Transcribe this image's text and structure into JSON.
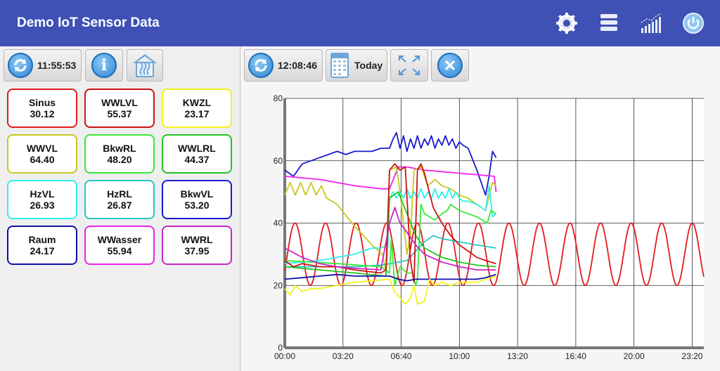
{
  "app": {
    "title": "Demo IoT Sensor Data"
  },
  "actions": [
    "gear-icon",
    "layers-icon",
    "bar-chart-icon",
    "power-icon"
  ],
  "left_toolbar": {
    "time": "11:55:53"
  },
  "right_toolbar": {
    "time": "12:08:46",
    "date_label": "Today"
  },
  "sensors": [
    {
      "name": "Sinus",
      "value": "30.12",
      "color": "#e21b1b"
    },
    {
      "name": "WWLVL",
      "value": "55.37",
      "color": "#c81414"
    },
    {
      "name": "KWZL",
      "value": "23.17",
      "color": "#f2f21c"
    },
    {
      "name": "WWVL",
      "value": "64.40",
      "color": "#c8c81e"
    },
    {
      "name": "BkwRL",
      "value": "48.20",
      "color": "#3ae83a"
    },
    {
      "name": "WWLRL",
      "value": "44.37",
      "color": "#22c422"
    },
    {
      "name": "HzVL",
      "value": "26.93",
      "color": "#2ef0ec"
    },
    {
      "name": "HzRL",
      "value": "26.87",
      "color": "#24c8c0"
    },
    {
      "name": "BkwVL",
      "value": "53.20",
      "color": "#1a1ad0"
    },
    {
      "name": "Raum",
      "value": "24.17",
      "color": "#1010a8"
    },
    {
      "name": "WWasser",
      "value": "55.94",
      "color": "#ee22ee"
    },
    {
      "name": "WWRL",
      "value": "37.95",
      "color": "#c826c8"
    }
  ],
  "chart_data": {
    "type": "line",
    "ylim": [
      0,
      80
    ],
    "yticks": [
      "0",
      "20",
      "40",
      "60",
      "80"
    ],
    "xlim": [
      0,
      24
    ],
    "xticks": [
      {
        "label": "00:00",
        "h": 0
      },
      {
        "label": "03:20",
        "h": 3.333
      },
      {
        "label": "06:40",
        "h": 6.667
      },
      {
        "label": "10:00",
        "h": 10
      },
      {
        "label": "13:20",
        "h": 13.333
      },
      {
        "label": "16:40",
        "h": 16.667
      },
      {
        "label": "20:00",
        "h": 20
      },
      {
        "label": "23:20",
        "h": 23.333
      }
    ],
    "grid": true,
    "series": [
      {
        "color": "#e21b1b",
        "sine": {
          "mean": 30,
          "amp": 10,
          "period_h": 1.75,
          "phase_h": 0.15,
          "x0": 0,
          "x1": 24
        }
      },
      {
        "color": "#1a1ad0",
        "points": [
          [
            0,
            57
          ],
          [
            0.5,
            55
          ],
          [
            1,
            59
          ],
          [
            1.5,
            60
          ],
          [
            2,
            61
          ],
          [
            2.5,
            62
          ],
          [
            3,
            63
          ],
          [
            3.5,
            62
          ],
          [
            4,
            63
          ],
          [
            4.5,
            63
          ],
          [
            5,
            63
          ],
          [
            5.5,
            64
          ],
          [
            6,
            64
          ],
          [
            6.2,
            67
          ],
          [
            6.4,
            69
          ],
          [
            6.6,
            64
          ],
          [
            6.8,
            68
          ],
          [
            7,
            63
          ],
          [
            7.2,
            67
          ],
          [
            7.4,
            64
          ],
          [
            7.6,
            68
          ],
          [
            7.8,
            64
          ],
          [
            8,
            67
          ],
          [
            8.2,
            65
          ],
          [
            8.4,
            68
          ],
          [
            8.6,
            64
          ],
          [
            8.8,
            67
          ],
          [
            9,
            65
          ],
          [
            9.2,
            68
          ],
          [
            9.4,
            65
          ],
          [
            9.6,
            67
          ],
          [
            9.8,
            64
          ],
          [
            10,
            66
          ],
          [
            10.2,
            65
          ],
          [
            10.5,
            64
          ],
          [
            11,
            57
          ],
          [
            11.5,
            49
          ],
          [
            11.7,
            55
          ],
          [
            11.9,
            63
          ],
          [
            12.1,
            61
          ]
        ]
      },
      {
        "color": "#ee22ee",
        "points": [
          [
            0,
            55
          ],
          [
            2,
            54
          ],
          [
            4,
            52
          ],
          [
            5.5,
            51
          ],
          [
            6,
            51
          ],
          [
            6.5,
            58
          ],
          [
            7,
            58
          ],
          [
            8,
            57
          ],
          [
            10,
            56
          ],
          [
            12,
            55
          ],
          [
            12.1,
            50
          ]
        ]
      },
      {
        "color": "#c8c81e",
        "points": [
          [
            0,
            49
          ],
          [
            0.3,
            53
          ],
          [
            0.6,
            49
          ],
          [
            0.9,
            53
          ],
          [
            1.2,
            49
          ],
          [
            1.5,
            53
          ],
          [
            1.8,
            49
          ],
          [
            2.1,
            52
          ],
          [
            2.4,
            48
          ],
          [
            3,
            46
          ],
          [
            4,
            39
          ],
          [
            5,
            33
          ],
          [
            5.6,
            30
          ],
          [
            5.8,
            24
          ],
          [
            6,
            57
          ],
          [
            6.4,
            58
          ],
          [
            6.6,
            50
          ],
          [
            6.8,
            40
          ],
          [
            7,
            30
          ],
          [
            7.2,
            36
          ],
          [
            7.4,
            57
          ],
          [
            7.8,
            58
          ],
          [
            8.2,
            52
          ],
          [
            8.6,
            54
          ],
          [
            9,
            52
          ],
          [
            9.5,
            51
          ],
          [
            10,
            49
          ],
          [
            10.5,
            48
          ],
          [
            11,
            46
          ],
          [
            11.5,
            44
          ],
          [
            11.9,
            53
          ],
          [
            12.1,
            52
          ]
        ]
      },
      {
        "color": "#2ef0ec",
        "points": [
          [
            0,
            27
          ],
          [
            1,
            27.5
          ],
          [
            2,
            28
          ],
          [
            3,
            29
          ],
          [
            4,
            30
          ],
          [
            4.5,
            31
          ],
          [
            5,
            32
          ],
          [
            5.5,
            32
          ],
          [
            5.9,
            33
          ],
          [
            6,
            48
          ],
          [
            6.2,
            50
          ],
          [
            6.4,
            48
          ],
          [
            6.6,
            50
          ],
          [
            6.8,
            48
          ],
          [
            7,
            51
          ],
          [
            7.2,
            48
          ],
          [
            7.4,
            50
          ],
          [
            7.6,
            48
          ],
          [
            7.8,
            51
          ],
          [
            8,
            48
          ],
          [
            8.2,
            50
          ],
          [
            8.4,
            48
          ],
          [
            8.6,
            51
          ],
          [
            8.8,
            48
          ],
          [
            9,
            50
          ],
          [
            9.2,
            48
          ],
          [
            9.4,
            51
          ],
          [
            9.6,
            48
          ],
          [
            9.8,
            50
          ],
          [
            10,
            48
          ],
          [
            10.2,
            47
          ],
          [
            10.5,
            47
          ],
          [
            11,
            46
          ],
          [
            11.5,
            44
          ],
          [
            11.7,
            52
          ],
          [
            11.9,
            42
          ],
          [
            12.1,
            43
          ]
        ]
      },
      {
        "color": "#24c8c0",
        "points": [
          [
            0,
            26
          ],
          [
            2,
            26
          ],
          [
            4,
            26
          ],
          [
            5.5,
            26.5
          ],
          [
            6,
            27
          ],
          [
            7,
            28
          ],
          [
            8,
            34
          ],
          [
            8.5,
            36
          ],
          [
            9,
            35
          ],
          [
            10,
            34
          ],
          [
            11,
            33
          ],
          [
            12.1,
            32
          ]
        ]
      },
      {
        "color": "#3ae83a",
        "points": [
          [
            0,
            28
          ],
          [
            3,
            27
          ],
          [
            5.5,
            26
          ],
          [
            6,
            24
          ],
          [
            6.1,
            35
          ],
          [
            6.3,
            20
          ],
          [
            6.6,
            26
          ],
          [
            7,
            24
          ],
          [
            7.3,
            24
          ],
          [
            7.5,
            20
          ],
          [
            7.6,
            22
          ],
          [
            7.8,
            46
          ],
          [
            8,
            43
          ],
          [
            8.3,
            42
          ],
          [
            8.6,
            41
          ],
          [
            9,
            43
          ],
          [
            9.3,
            44
          ],
          [
            9.5,
            46
          ],
          [
            10,
            44
          ],
          [
            11,
            42
          ],
          [
            11.6,
            40
          ],
          [
            11.8,
            44
          ],
          [
            12.1,
            43
          ]
        ]
      },
      {
        "color": "#22c422",
        "points": [
          [
            0,
            26
          ],
          [
            2,
            25
          ],
          [
            4,
            24
          ],
          [
            5.8,
            23
          ],
          [
            6,
            48
          ],
          [
            6.5,
            50
          ],
          [
            7,
            43
          ],
          [
            7.5,
            36
          ],
          [
            8,
            32
          ],
          [
            9,
            29
          ],
          [
            10,
            27.5
          ],
          [
            11,
            26.5
          ],
          [
            12.1,
            26
          ]
        ]
      },
      {
        "color": "#c81414",
        "points": [
          [
            0,
            28
          ],
          [
            0.5,
            26
          ],
          [
            1,
            27
          ],
          [
            2,
            26
          ],
          [
            3,
            26
          ],
          [
            4,
            25
          ],
          [
            5.5,
            24
          ],
          [
            5.8,
            25
          ],
          [
            6,
            57
          ],
          [
            6.3,
            59
          ],
          [
            6.6,
            57
          ],
          [
            6.9,
            58
          ],
          [
            7.2,
            28
          ],
          [
            7.4,
            21
          ],
          [
            7.6,
            57
          ],
          [
            7.8,
            59
          ],
          [
            8,
            56
          ],
          [
            8.5,
            45
          ],
          [
            9,
            40
          ],
          [
            9.5,
            36
          ],
          [
            10,
            33
          ],
          [
            10.5,
            31
          ],
          [
            11,
            29
          ],
          [
            11.5,
            28
          ],
          [
            12.1,
            27
          ]
        ]
      },
      {
        "color": "#c826c8",
        "points": [
          [
            0,
            32
          ],
          [
            1,
            29
          ],
          [
            2,
            27
          ],
          [
            3,
            26
          ],
          [
            4,
            25.5
          ],
          [
            5.5,
            25
          ],
          [
            6,
            40
          ],
          [
            6.3,
            45
          ],
          [
            6.6,
            40
          ],
          [
            7,
            37
          ],
          [
            7.5,
            33
          ],
          [
            8,
            30
          ],
          [
            9,
            27.5
          ],
          [
            10,
            26
          ],
          [
            11,
            25
          ],
          [
            12.1,
            25
          ]
        ]
      },
      {
        "color": "#1010a8",
        "points": [
          [
            0,
            22
          ],
          [
            1,
            22.5
          ],
          [
            2,
            23
          ],
          [
            3,
            23.5
          ],
          [
            4,
            23
          ],
          [
            5,
            23
          ],
          [
            6,
            23
          ],
          [
            6.5,
            22
          ],
          [
            7,
            21.5
          ],
          [
            7.5,
            22
          ],
          [
            8,
            22
          ],
          [
            9,
            22
          ],
          [
            10,
            22
          ],
          [
            11,
            22
          ],
          [
            11.5,
            22.5
          ],
          [
            12.1,
            23.5
          ]
        ]
      },
      {
        "color": "#f2f21c",
        "points": [
          [
            0,
            19
          ],
          [
            0.3,
            17
          ],
          [
            0.6,
            20
          ],
          [
            1,
            18
          ],
          [
            1.5,
            19
          ],
          [
            2,
            19
          ],
          [
            3,
            20
          ],
          [
            4,
            21
          ],
          [
            5,
            21.5
          ],
          [
            6,
            22
          ],
          [
            6.3,
            18
          ],
          [
            6.6,
            16
          ],
          [
            6.9,
            14
          ],
          [
            7.2,
            16
          ],
          [
            7.4,
            20
          ],
          [
            7.6,
            14
          ],
          [
            8,
            15
          ],
          [
            8.3,
            22
          ],
          [
            8.6,
            20
          ],
          [
            9,
            21
          ],
          [
            9.5,
            20
          ],
          [
            10,
            21
          ],
          [
            10.5,
            21
          ],
          [
            11,
            21
          ],
          [
            11.5,
            22
          ],
          [
            12.1,
            23
          ]
        ]
      }
    ]
  }
}
